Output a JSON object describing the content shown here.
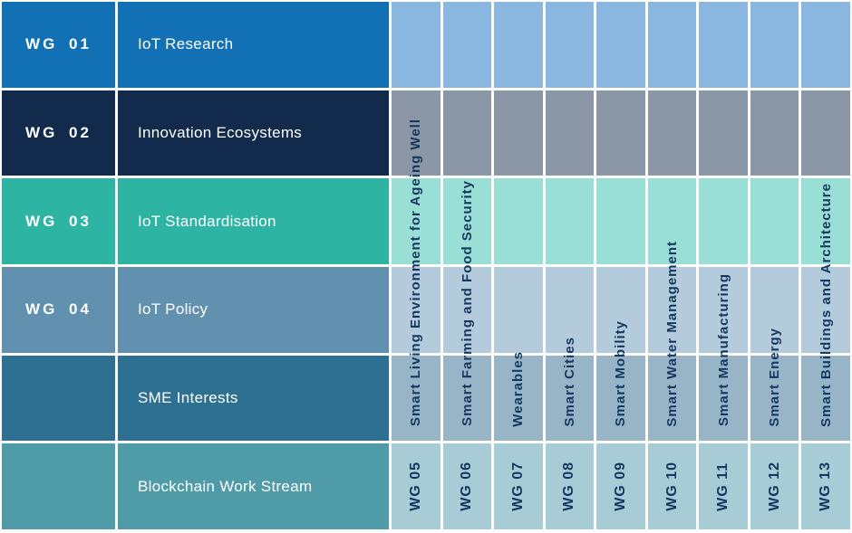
{
  "left_rows": [
    {
      "number": "WG 01",
      "label": "IoT Research",
      "color": "#1271b5",
      "tint": "#8ab7e0"
    },
    {
      "number": "WG 02",
      "label": "Innovation Ecosystems",
      "color": "#122a4b",
      "tint": "#8b96a6"
    },
    {
      "number": "WG 03",
      "label": "IoT Standardisation",
      "color": "#2db4a3",
      "tint": "#9adfd5"
    },
    {
      "number": "WG 04",
      "label": "IoT Policy",
      "color": "#6191af",
      "tint": "#b3cbdb"
    },
    {
      "number": "",
      "label": "SME Interests",
      "color": "#2e7092",
      "tint": "#98b4c7"
    },
    {
      "number": "",
      "label": "Blockchain Work Stream",
      "color": "#4f9ba7",
      "tint": "#a7ccd5"
    }
  ],
  "vertical_columns": [
    {
      "number": "WG 05",
      "label": "Smart Living Environment for Ageing Well"
    },
    {
      "number": "WG 06",
      "label": "Smart Farming and Food Security"
    },
    {
      "number": "WG 07",
      "label": "Wearables"
    },
    {
      "number": "WG 08",
      "label": "Smart Cities"
    },
    {
      "number": "WG 09",
      "label": "Smart Mobility"
    },
    {
      "number": "WG 10",
      "label": "Smart Water Management"
    },
    {
      "number": "WG 11",
      "label": "Smart Manufacturing"
    },
    {
      "number": "WG 12",
      "label": "Smart Energy"
    },
    {
      "number": "WG 13",
      "label": "Smart Buildings and Architecture"
    }
  ],
  "text_colors": {
    "left_text": "#ffffff",
    "vertical_text": "#14385f"
  }
}
